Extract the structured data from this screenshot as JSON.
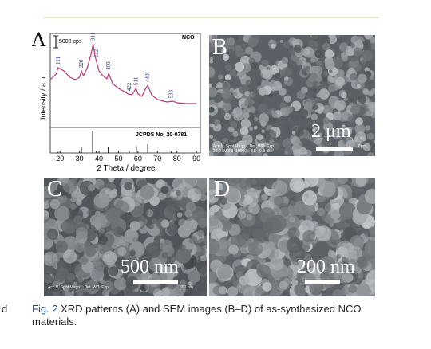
{
  "caption": {
    "fig_label": "Fig. 2",
    "text": " XRD patterns (A) and SEM images (B–D) of as-synthesized NCO",
    "text2": "materials.",
    "margin_fragment": "d"
  },
  "panel_a": {
    "label": "A",
    "sample": "NCO",
    "scale_label": "5000 cps",
    "ylabel": "Intensity / a.u.",
    "xlabel": "2 Theta / degree",
    "reference": "JCPDS No. 20-0781",
    "x_ticks": [
      "20",
      "30",
      "40",
      "50",
      "60",
      "70",
      "80",
      "90"
    ]
  },
  "chart_data": {
    "type": "line",
    "title": "",
    "xlabel": "2 Theta / degree",
    "ylabel": "Intensity / a.u.",
    "xlim": [
      15,
      92
    ],
    "series": [
      {
        "name": "NCO",
        "x": [
          15,
          18,
          19,
          22,
          25,
          28,
          30,
          31,
          32,
          34,
          36,
          37,
          38,
          40,
          42,
          44,
          45,
          47,
          50,
          53,
          55,
          57,
          59,
          60,
          62,
          64,
          65,
          67,
          70,
          73,
          75,
          78,
          80,
          85,
          90
        ],
        "y": [
          0.55,
          0.62,
          0.7,
          0.66,
          0.58,
          0.55,
          0.58,
          0.66,
          0.6,
          0.7,
          0.88,
          1.0,
          0.84,
          0.66,
          0.6,
          0.56,
          0.63,
          0.5,
          0.44,
          0.4,
          0.37,
          0.36,
          0.44,
          0.37,
          0.34,
          0.44,
          0.48,
          0.36,
          0.3,
          0.28,
          0.27,
          0.28,
          0.26,
          0.25,
          0.25
        ]
      }
    ],
    "peak_labels": [
      {
        "hkl": "111",
        "x": 19
      },
      {
        "hkl": "220",
        "x": 31
      },
      {
        "hkl": "311",
        "x": 37
      },
      {
        "hkl": "222",
        "x": 38.6
      },
      {
        "hkl": "400",
        "x": 45
      },
      {
        "hkl": "422",
        "x": 55.5
      },
      {
        "hkl": "511",
        "x": 59
      },
      {
        "hkl": "440",
        "x": 65
      },
      {
        "hkl": "533",
        "x": 77
      }
    ],
    "reference_lines": [
      {
        "x": 19,
        "h": 0.06
      },
      {
        "x": 31,
        "h": 0.28
      },
      {
        "x": 36.7,
        "h": 1.0
      },
      {
        "x": 38.5,
        "h": 0.1
      },
      {
        "x": 44.7,
        "h": 0.28
      },
      {
        "x": 55.5,
        "h": 0.1
      },
      {
        "x": 59.2,
        "h": 0.3
      },
      {
        "x": 65,
        "h": 0.4
      },
      {
        "x": 77,
        "h": 0.08
      }
    ]
  },
  "panels": {
    "b": {
      "label": "B",
      "scale": "2 μm",
      "scale_small": "2 μm",
      "meta1": "Acc.V  Spot Magn    Det  WD  Exp",
      "meta2": "25.0 kV 3.0  10000x  SE   9.8  0"
    },
    "c": {
      "label": "C",
      "scale": "500 nm",
      "meta1": "Acc.V  Spot Magn    Det  WD  Exp",
      "scale_small": "500 nm"
    },
    "d": {
      "label": "D",
      "scale": "200 nm"
    }
  }
}
